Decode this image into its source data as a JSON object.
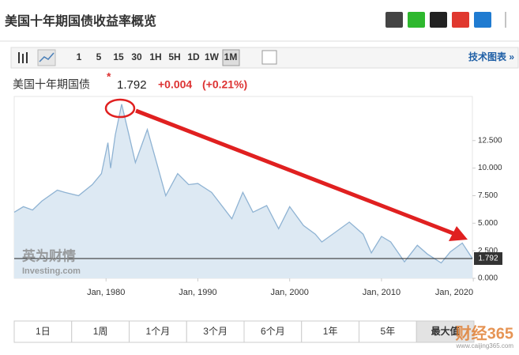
{
  "header": {
    "title": "美国十年期国债收益率概览"
  },
  "toolbar": {
    "intervals": [
      "1",
      "5",
      "15",
      "30",
      "1H",
      "5H",
      "1D",
      "1W",
      "1M"
    ],
    "active": "1M",
    "tech_link": "技术图表 »"
  },
  "quote": {
    "name": "美国十年期国债",
    "star": "*",
    "price": "1.792",
    "change": "+0.004",
    "change_pct": "(+0.21%)"
  },
  "watermark": {
    "brand": "英为财情",
    "site": "Investing.com",
    "corner": "财经365",
    "corner_url": "www.caijing365.com"
  },
  "ranges": {
    "labels": [
      "1日",
      "1周",
      "1个月",
      "3个月",
      "6个月",
      "1年",
      "5年",
      "最大值"
    ],
    "active": "最大值"
  },
  "chart_data": {
    "type": "area",
    "color": "#8fb3d3",
    "fill": "#dde9f3",
    "x": [
      1970,
      1971,
      1972,
      1973,
      1974.7,
      1975.5,
      1977,
      1978.5,
      1979.5,
      1980.2,
      1980.5,
      1981.0,
      1981.7,
      1982.5,
      1983.2,
      1984.5,
      1985.5,
      1986.5,
      1987.8,
      1989,
      1990,
      1991.5,
      1993.7,
      1994.9,
      1996,
      1997.5,
      1998.8,
      2000,
      2001.5,
      2002.8,
      2003.5,
      2005,
      2006.5,
      2008,
      2008.9,
      2010,
      2011,
      2012.5,
      2013.9,
      2015,
      2016.5,
      2017.5,
      2018.8,
      2019.9
    ],
    "values": [
      6.0,
      6.5,
      6.2,
      7.0,
      8.0,
      7.8,
      7.5,
      8.5,
      9.5,
      12.3,
      10.0,
      13.0,
      15.8,
      13.0,
      10.5,
      13.5,
      10.5,
      7.5,
      9.5,
      8.5,
      8.6,
      7.8,
      5.4,
      7.8,
      6.0,
      6.6,
      4.5,
      6.5,
      4.8,
      4.0,
      3.3,
      4.2,
      5.1,
      4.0,
      2.3,
      3.8,
      3.3,
      1.5,
      3.0,
      2.2,
      1.4,
      2.4,
      3.2,
      1.792
    ],
    "xlim": [
      1970,
      2019.9
    ],
    "ylim": [
      0,
      16.5
    ],
    "xticks": [
      {
        "value": 1980,
        "label": "Jan, 1980"
      },
      {
        "value": 1990,
        "label": "Jan, 1990"
      },
      {
        "value": 2000,
        "label": "Jan, 2000"
      },
      {
        "value": 2010,
        "label": "Jan, 2010"
      },
      {
        "value": 2020,
        "label": "Jan, 2020"
      }
    ],
    "yticks": [
      {
        "value": 0,
        "label": "0.000"
      },
      {
        "value": 2.5,
        "label": "2.500"
      },
      {
        "value": 5,
        "label": "5.000"
      },
      {
        "value": 7.5,
        "label": "7.500"
      },
      {
        "value": 10,
        "label": "10.000"
      },
      {
        "value": 12.5,
        "label": "12.500"
      }
    ]
  }
}
